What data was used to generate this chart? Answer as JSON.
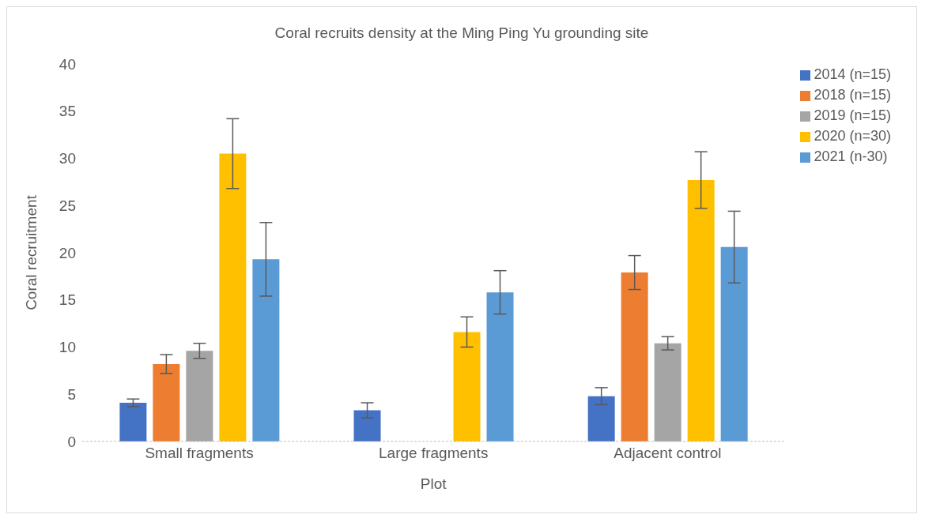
{
  "chart_data": {
    "type": "bar",
    "title": "Coral recruits density at the Ming Ping Yu grounding site",
    "xlabel": "Plot",
    "ylabel": "Coral recruitment",
    "categories": [
      "Small fragments",
      "Large fragments",
      "Adjacent control"
    ],
    "series": [
      {
        "name": "2014 (n=15)",
        "color": "#4472c4",
        "values": [
          4.1,
          3.3,
          4.8
        ],
        "errors": [
          0.4,
          0.8,
          0.9
        ]
      },
      {
        "name": "2018 (n=15)",
        "color": "#ed7d31",
        "values": [
          8.2,
          null,
          17.9
        ],
        "errors": [
          1.0,
          null,
          1.8
        ]
      },
      {
        "name": "2019 (n=15)",
        "color": "#a5a5a5",
        "values": [
          9.6,
          null,
          10.4
        ],
        "errors": [
          0.8,
          null,
          0.7
        ]
      },
      {
        "name": "2020 (n=30)",
        "color": "#ffc000",
        "values": [
          30.5,
          11.6,
          27.7
        ],
        "errors": [
          3.7,
          1.6,
          3.0
        ]
      },
      {
        "name": "2021 (n-30)",
        "color": "#5b9bd5",
        "values": [
          19.3,
          15.8,
          20.6
        ],
        "errors": [
          3.9,
          2.3,
          3.8
        ]
      }
    ],
    "ylim": [
      0,
      40
    ],
    "yticks": [
      0,
      5,
      10,
      15,
      20,
      25,
      30,
      35,
      40
    ],
    "grid": false,
    "legend": "top right"
  }
}
